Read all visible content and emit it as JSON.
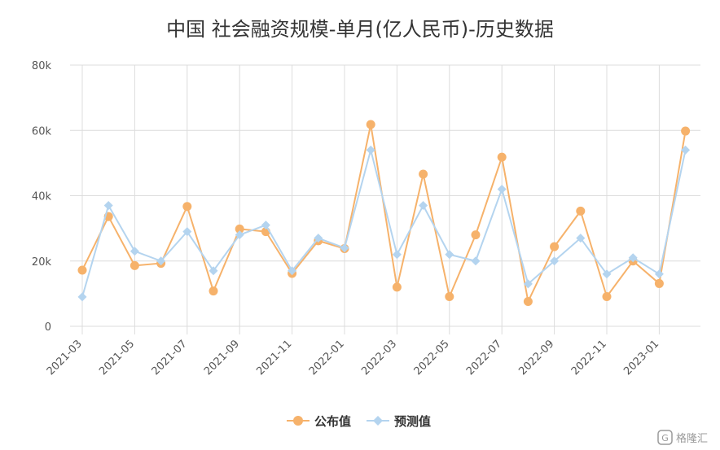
{
  "chart_data": {
    "type": "line",
    "title": "中国 社会融资规模-单月(亿人民币)-历史数据",
    "xlabel": "",
    "ylabel": "",
    "ylim": [
      0,
      80000
    ],
    "y_ticks": [
      0,
      20000,
      40000,
      60000,
      80000
    ],
    "y_tick_labels": [
      "0",
      "20k",
      "40k",
      "60k",
      "80k"
    ],
    "x": [
      "2021-03",
      "2021-04",
      "2021-05",
      "2021-06",
      "2021-07",
      "2021-08",
      "2021-09",
      "2021-10",
      "2021-11",
      "2021-12",
      "2022-01",
      "2022-02",
      "2022-03",
      "2022-04",
      "2022-05",
      "2022-06",
      "2022-07",
      "2022-08",
      "2022-09",
      "2022-10",
      "2022-11",
      "2022-12",
      "2023-01",
      "2023-02"
    ],
    "x_tick_labels": [
      "2021-03",
      "2021-05",
      "2021-07",
      "2021-09",
      "2021-11",
      "2022-01",
      "2022-03",
      "2022-05",
      "2022-07",
      "2022-09",
      "2022-11",
      "2023-01"
    ],
    "grid": true,
    "legend_position": "bottom-center",
    "series": [
      {
        "name": "公布值",
        "color": "#f6b26b",
        "marker": "circle",
        "values": [
          17200,
          33600,
          18600,
          19300,
          36700,
          10800,
          29800,
          29000,
          16200,
          26200,
          23800,
          61800,
          12000,
          46600,
          9100,
          28000,
          51800,
          7600,
          24400,
          35300,
          9100,
          20000,
          13100,
          59800
        ]
      },
      {
        "name": "预测值",
        "color": "#b4d4ef",
        "marker": "diamond",
        "values": [
          9000,
          37000,
          23000,
          20000,
          29000,
          17000,
          28000,
          31000,
          17000,
          27000,
          24000,
          54000,
          22000,
          37000,
          22000,
          20000,
          42000,
          13000,
          20000,
          27000,
          16000,
          21000,
          16000,
          54000
        ]
      }
    ]
  },
  "watermark": {
    "text": "格隆汇",
    "icon": "gelonghui-logo-icon"
  }
}
